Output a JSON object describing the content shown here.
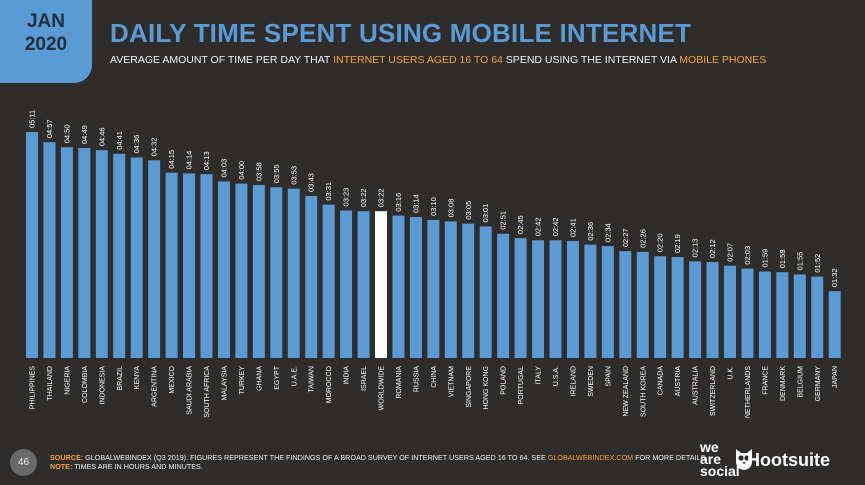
{
  "header": {
    "month": "JAN",
    "year": "2020",
    "title": "DAILY TIME SPENT USING MOBILE INTERNET",
    "subtitle_part1": "AVERAGE AMOUNT OF TIME PER DAY THAT ",
    "subtitle_hl1": "INTERNET USERS AGED 16 TO 64",
    "subtitle_part2": " SPEND USING THE INTERNET VIA ",
    "subtitle_hl2": "MOBILE PHONES"
  },
  "footer": {
    "page_number": "46",
    "source_label": "SOURCE:",
    "source_text": " GLOBALWEBINDEX (Q3 2019). FIGURES REPRESENT THE FINDINGS OF A BROAD SURVEY OF INTERNET USERS AGED 16 TO 64. SEE ",
    "source_link": "GLOBALWEBINDEX.COM",
    "source_tail": " FOR MORE DETAILS.",
    "note_label": "NOTE:",
    "note_text": " TIMES ARE IN HOURS AND MINUTES."
  },
  "brand": {
    "we_are_social": "we\nare\nsocial",
    "hootsuite": "Hootsuite"
  },
  "colors": {
    "bar": "#5b9bd5",
    "highlight_bar": "#ffffff",
    "background": "#2e2d2c",
    "accent": "#f5a23a"
  },
  "chart_data": {
    "type": "bar",
    "highlight": "WORLDWIDE",
    "categories": [
      "PHILIPPINES",
      "THAILAND",
      "NIGERIA",
      "COLOMBIA",
      "INDONESIA",
      "BRAZIL",
      "KENYA",
      "ARGENTINA",
      "MEXICO",
      "SAUDI ARABIA",
      "SOUTH AFRICA",
      "MALAYSIA",
      "TURKEY",
      "GHANA",
      "EGYPT",
      "U.A.E.",
      "TAIWAN",
      "MOROCCO",
      "INDIA",
      "ISRAEL",
      "WORLDWIDE",
      "ROMANIA",
      "RUSSIA",
      "CHINA",
      "VIETNAM",
      "SINGAPORE",
      "HONG KONG",
      "POLAND",
      "PORTUGAL",
      "ITALY",
      "U.S.A.",
      "IRELAND",
      "SWEDEN",
      "SPAIN",
      "NEW ZEALAND",
      "SOUTH KOREA",
      "CANADA",
      "AUSTRIA",
      "AUSTRALIA",
      "SWITZERLAND",
      "U.K.",
      "NETHERLANDS",
      "FRANCE",
      "DENMARK",
      "BELGIUM",
      "GERMANY",
      "JAPAN"
    ],
    "labels": [
      "05:11",
      "04:57",
      "04:50",
      "04:49",
      "04:46",
      "04:41",
      "04:36",
      "04:32",
      "04:15",
      "04:14",
      "04:13",
      "04:03",
      "04:00",
      "03:58",
      "03:55",
      "03:53",
      "03:43",
      "03:31",
      "03:23",
      "03:22",
      "03:22",
      "03:16",
      "03:14",
      "03:10",
      "03:08",
      "03:05",
      "03:01",
      "02:51",
      "02:45",
      "02:42",
      "02:42",
      "02:41",
      "02:36",
      "02:34",
      "02:27",
      "02:26",
      "02:20",
      "02:19",
      "02:13",
      "02:12",
      "02:07",
      "02:03",
      "01:59",
      "01:58",
      "01:55",
      "01:52",
      "01:32"
    ],
    "values_minutes": [
      311,
      297,
      290,
      289,
      286,
      281,
      276,
      272,
      255,
      254,
      253,
      243,
      240,
      238,
      235,
      233,
      223,
      211,
      203,
      202,
      202,
      196,
      194,
      190,
      188,
      185,
      181,
      171,
      165,
      162,
      162,
      161,
      156,
      154,
      147,
      146,
      140,
      139,
      133,
      132,
      127,
      123,
      119,
      118,
      115,
      112,
      92
    ]
  }
}
